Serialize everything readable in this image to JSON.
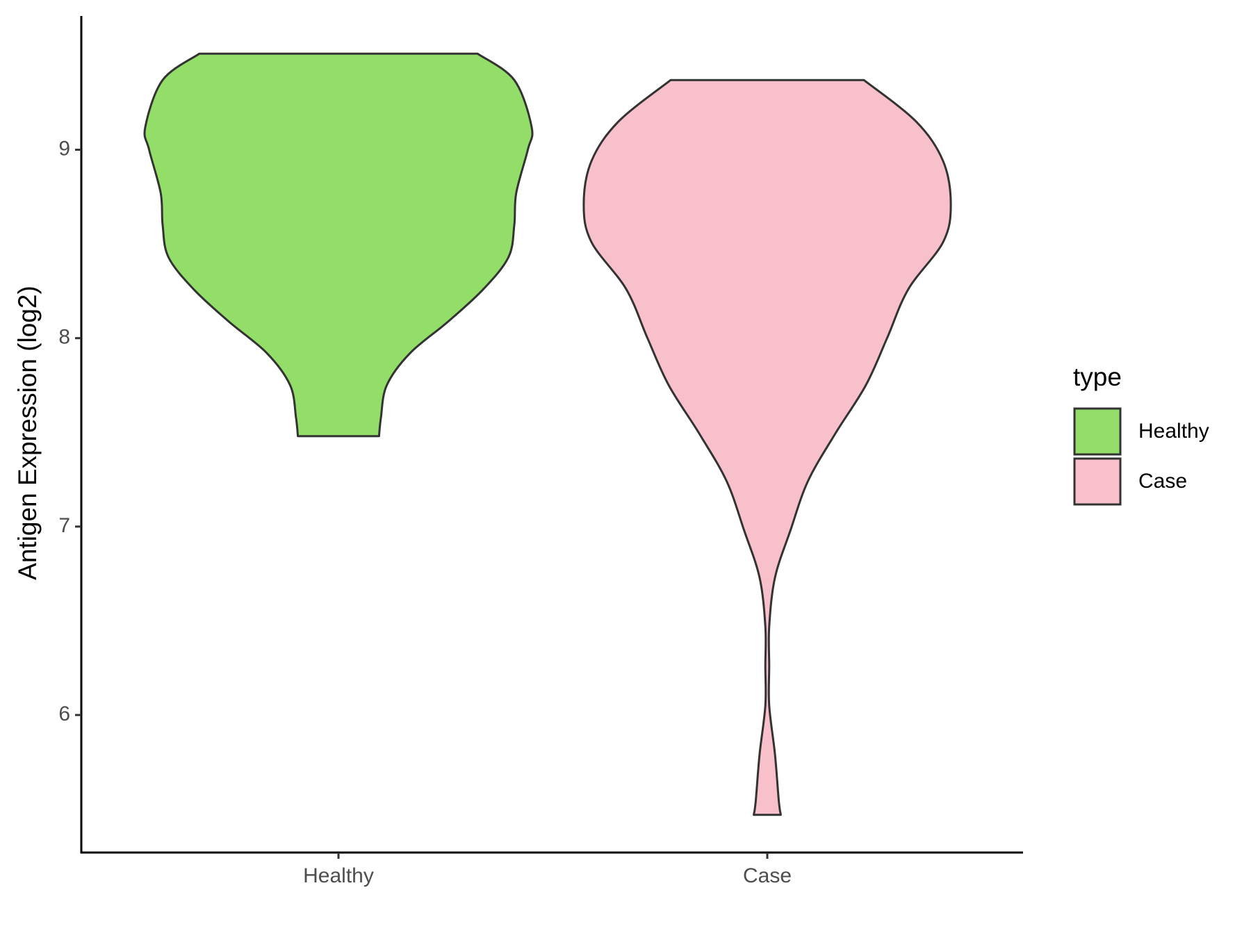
{
  "chart_data": {
    "type": "violin",
    "ylabel": "Antigen Expression (log2)",
    "ylim": [
      5.27,
      9.71
    ],
    "yticks": [
      6,
      7,
      8,
      9
    ],
    "categories": [
      "Healthy",
      "Case"
    ],
    "legend_title": "type",
    "series": [
      {
        "name": "Healthy",
        "color": "#93dd69",
        "y": [
          9.51,
          9.37,
          9.12,
          9.0,
          8.77,
          8.6,
          8.43,
          8.26,
          8.09,
          7.92,
          7.75,
          7.58,
          7.48
        ],
        "density": [
          0.72,
          0.91,
          1.0,
          0.98,
          0.92,
          0.91,
          0.88,
          0.75,
          0.57,
          0.37,
          0.25,
          0.22,
          0.21
        ]
      },
      {
        "name": "Case",
        "color": "#f7c0cb",
        "y": [
          9.37,
          9.15,
          8.94,
          8.71,
          8.51,
          8.26,
          8.0,
          7.75,
          7.49,
          7.24,
          6.98,
          6.73,
          6.47,
          6.26,
          6.05,
          5.79,
          5.54,
          5.47
        ],
        "density": [
          0.5,
          0.77,
          0.91,
          0.95,
          0.91,
          0.73,
          0.62,
          0.51,
          0.35,
          0.21,
          0.12,
          0.04,
          0.01,
          0.01,
          0.01,
          0.04,
          0.06,
          0.07
        ]
      }
    ]
  }
}
